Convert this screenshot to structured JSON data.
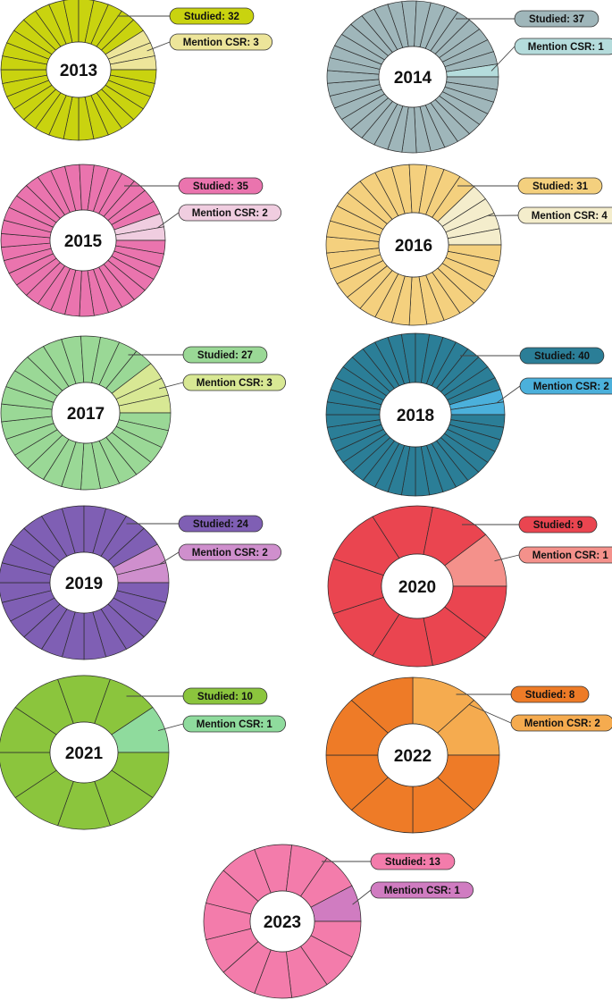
{
  "chart_data": [
    {
      "type": "pie",
      "year": "2013",
      "studied": 32,
      "mention_csr": 3,
      "studied_label": "Studied: 32",
      "mention_label": "Mention CSR: 3",
      "color_main": "#c9d30f",
      "color_mention": "#ede59a"
    },
    {
      "type": "pie",
      "year": "2014",
      "studied": 37,
      "mention_csr": 1,
      "studied_label": "Studied: 37",
      "mention_label": "Mention CSR: 1",
      "color_main": "#9fb6ba",
      "color_mention": "#b5dcdc"
    },
    {
      "type": "pie",
      "year": "2015",
      "studied": 35,
      "mention_csr": 2,
      "studied_label": "Studied: 35",
      "mention_label": "Mention CSR: 2",
      "color_main": "#ea74ae",
      "color_mention": "#f0cde0"
    },
    {
      "type": "pie",
      "year": "2016",
      "studied": 31,
      "mention_csr": 4,
      "studied_label": "Studied: 31",
      "mention_label": "Mention CSR: 4",
      "color_main": "#f4d07e",
      "color_mention": "#f4edcc"
    },
    {
      "type": "pie",
      "year": "2017",
      "studied": 27,
      "mention_csr": 3,
      "studied_label": "Studied: 27",
      "mention_label": "Mention CSR: 3",
      "color_main": "#9ad896",
      "color_mention": "#d8e894"
    },
    {
      "type": "pie",
      "year": "2018",
      "studied": 40,
      "mention_csr": 2,
      "studied_label": "Studied: 40",
      "mention_label": "Mention CSR: 2",
      "color_main": "#2b7e97",
      "color_mention": "#4bb0db"
    },
    {
      "type": "pie",
      "year": "2019",
      "studied": 24,
      "mention_csr": 2,
      "studied_label": "Studied: 24",
      "mention_label": "Mention CSR: 2",
      "color_main": "#7f5fb4",
      "color_mention": "#cf8fcd"
    },
    {
      "type": "pie",
      "year": "2020",
      "studied": 9,
      "mention_csr": 1,
      "studied_label": "Studied: 9",
      "mention_label": "Mention CSR: 1",
      "color_main": "#ea4550",
      "color_mention": "#f4918b"
    },
    {
      "type": "pie",
      "year": "2021",
      "studied": 10,
      "mention_csr": 1,
      "studied_label": "Studied: 10",
      "mention_label": "Mention CSR: 1",
      "color_main": "#8bc53d",
      "color_mention": "#8fdb9d"
    },
    {
      "type": "pie",
      "year": "2022",
      "studied": 8,
      "mention_csr": 2,
      "studied_label": "Studied: 8",
      "mention_label": "Mention CSR: 2",
      "color_main": "#ee7b27",
      "color_mention": "#f5ab4f"
    },
    {
      "type": "pie",
      "year": "2023",
      "studied": 13,
      "mention_csr": 1,
      "studied_label": "Studied: 13",
      "mention_label": "Mention CSR: 1",
      "color_main": "#f37cab",
      "color_mention": "#d07cc1"
    }
  ]
}
